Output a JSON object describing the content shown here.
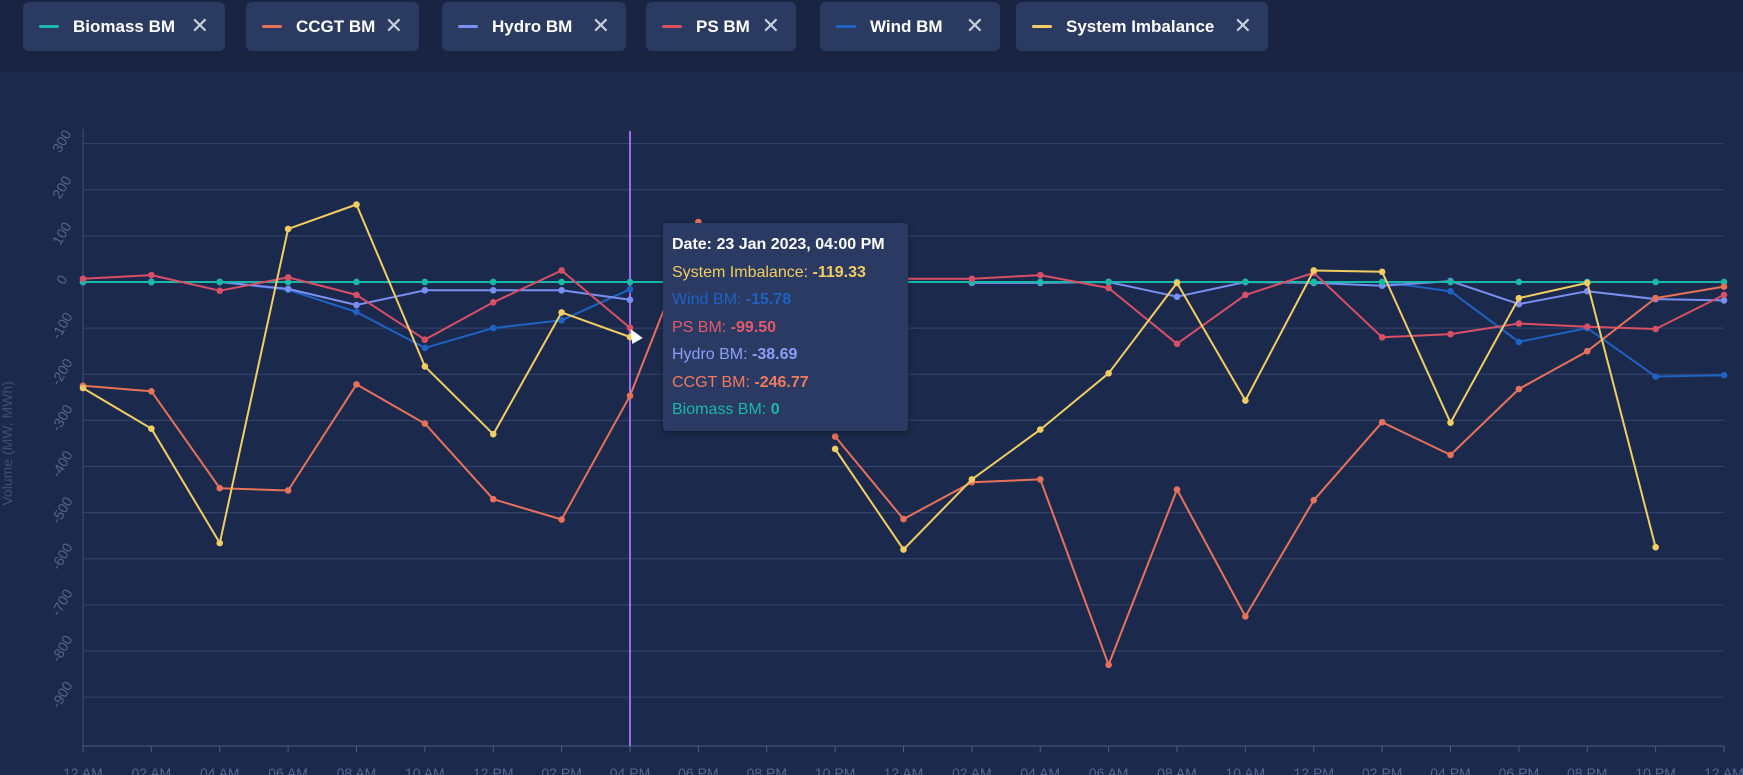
{
  "legend": [
    {
      "key": "biomass",
      "label": "Biomass BM",
      "color": "#19b8a7",
      "close": "✕"
    },
    {
      "key": "ccgt",
      "label": "CCGT BM",
      "color": "#e8715a",
      "close": "✕"
    },
    {
      "key": "hydro",
      "label": "Hydro BM",
      "color": "#7b8ff2",
      "close": "✕"
    },
    {
      "key": "ps",
      "label": "PS BM",
      "color": "#d94f66",
      "close": "✕"
    },
    {
      "key": "wind",
      "label": "Wind BM",
      "color": "#1f62c4",
      "close": "✕"
    },
    {
      "key": "imbalance",
      "label": "System Imbalance",
      "color": "#f1cd62",
      "close": "✕"
    }
  ],
  "tooltip": {
    "date": "Date: 23 Jan 2023, 04:00 PM",
    "rows": [
      {
        "label": "System Imbalance: ",
        "value": "-119.33",
        "color": "#f1cd62"
      },
      {
        "label": "Wind BM: ",
        "value": "-15.78",
        "color": "#1f62c4"
      },
      {
        "label": "PS BM: ",
        "value": "-99.50",
        "color": "#e25a6f"
      },
      {
        "label": "Hydro BM: ",
        "value": "-38.69",
        "color": "#8c9ef8"
      },
      {
        "label": "CCGT BM: ",
        "value": "-246.77",
        "color": "#ef7a62"
      },
      {
        "label": "Biomass BM: ",
        "value": "0",
        "color": "#19b8a7"
      }
    ]
  },
  "chart_data": {
    "type": "line",
    "ylabel": "Volume (MW, MWh)",
    "ylim": [
      -980,
      310
    ],
    "yticks": [
      300,
      200,
      100,
      0,
      -100,
      -200,
      -300,
      -400,
      -500,
      -600,
      -700,
      -800,
      -900
    ],
    "xtick_labels": [
      "12 AM",
      "02 AM",
      "04 AM",
      "06 AM",
      "08 AM",
      "10 AM",
      "12 PM",
      "02 PM",
      "04 PM",
      "06 PM",
      "08 PM",
      "10 PM",
      "12 AM",
      "02 AM",
      "04 AM",
      "06 AM",
      "08 AM",
      "10 AM",
      "12 PM",
      "02 PM",
      "04 PM",
      "06 PM",
      "08 PM",
      "10 PM",
      "12 AM"
    ],
    "hover_index": 8,
    "series": [
      {
        "name": "Biomass BM",
        "key": "biomass",
        "color": "#19b8a7",
        "values": [
          0,
          0,
          0,
          0,
          0,
          0,
          0,
          0,
          0,
          0,
          0,
          0,
          0,
          0,
          0,
          0,
          0,
          0,
          0,
          0,
          0,
          0,
          0,
          0,
          0
        ]
      },
      {
        "name": "CCGT BM",
        "key": "ccgt",
        "color": "#e8715a",
        "values": [
          -225,
          -237,
          -447,
          -452,
          -222,
          -307,
          -471,
          -515,
          -246.77,
          130,
          null,
          -335,
          -514,
          -434,
          -428,
          -830,
          -450,
          -725,
          -473,
          -304,
          -375,
          -232,
          -150,
          -35,
          -10
        ]
      },
      {
        "name": "Hydro BM",
        "key": "hydro",
        "color": "#7b8ff2",
        "values": [
          0,
          0,
          0,
          -15,
          -50,
          -18,
          -18,
          -18,
          -38.69,
          null,
          null,
          null,
          null,
          -2,
          -2,
          0,
          -32,
          0,
          -2,
          -8,
          2,
          -48,
          -20,
          -37,
          -40
        ]
      },
      {
        "name": "PS BM",
        "key": "ps",
        "color": "#d94f66",
        "values": [
          7,
          15,
          -19,
          10,
          -28,
          -125,
          -44,
          25,
          -99.5,
          null,
          null,
          null,
          7,
          7,
          15,
          -13,
          -134,
          -28,
          20,
          -120,
          -113,
          -90,
          -97,
          -102,
          -28
        ]
      },
      {
        "name": "Wind BM",
        "key": "wind",
        "color": "#1f62c4",
        "values": [
          0,
          0,
          0,
          -17,
          -65,
          -143,
          -100,
          -83,
          -15.78,
          null,
          null,
          null,
          null,
          null,
          null,
          0,
          0,
          0,
          0,
          0,
          -20,
          -130,
          -100,
          -205,
          -202
        ]
      },
      {
        "name": "System Imbalance",
        "key": "imbalance",
        "color": "#f1cd62",
        "values": [
          -230,
          -318,
          -566,
          115,
          168,
          -183,
          -330,
          -66,
          -119.33,
          null,
          null,
          -362,
          -580,
          -428,
          -320,
          -198,
          -2,
          -257,
          25,
          22,
          -305,
          -35,
          -2,
          -575,
          null
        ]
      }
    ]
  }
}
